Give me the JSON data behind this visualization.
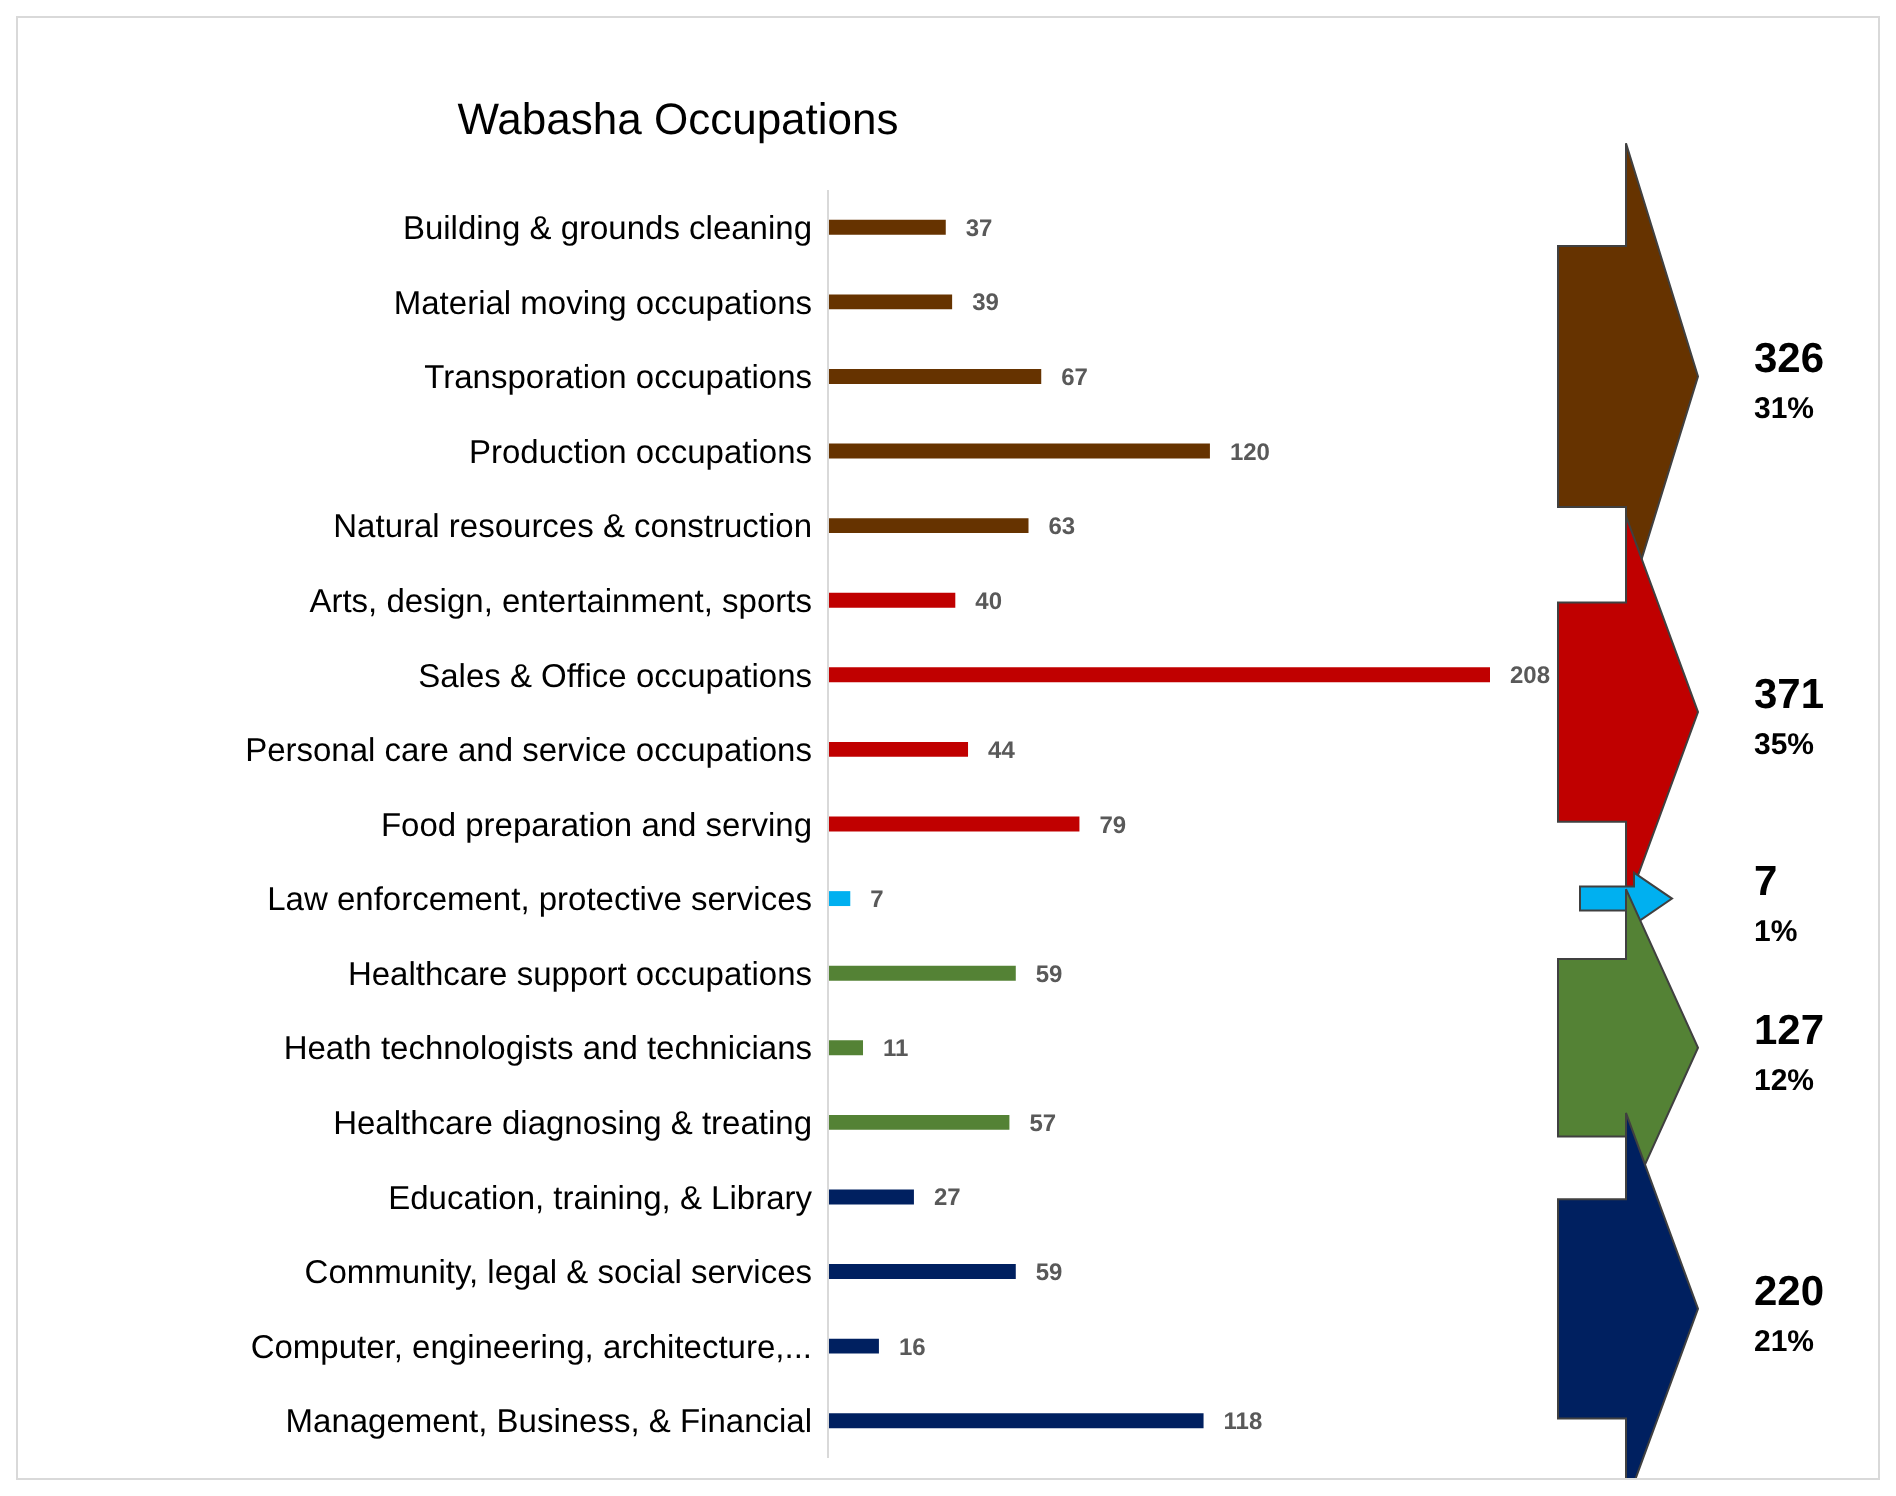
{
  "chart_data": {
    "type": "bar",
    "orientation": "horizontal",
    "title": "Wabasha Occupations",
    "categories": [
      "Building & grounds cleaning",
      "Material moving occupations",
      "Transporation occupations",
      "Production occupations",
      "Natural resources & construction",
      "Arts, design, entertainment, sports",
      "Sales & Office occupations",
      "Personal care and service occupations",
      "Food preparation and serving",
      "Law enforcement, protective services",
      "Healthcare support occupations",
      "Heath technologists and technicians",
      "Healthcare diagnosing & treating",
      "Education, training, & Library",
      "Community, legal & social services",
      "Computer, engineering, architecture,...",
      "Management, Business, & Financial"
    ],
    "values": [
      37,
      39,
      67,
      120,
      63,
      40,
      208,
      44,
      79,
      7,
      59,
      11,
      57,
      27,
      59,
      16,
      118
    ],
    "colors": [
      "#663300",
      "#663300",
      "#663300",
      "#663300",
      "#663300",
      "#c00000",
      "#c00000",
      "#c00000",
      "#c00000",
      "#00b0f0",
      "#548235",
      "#548235",
      "#548235",
      "#002060",
      "#002060",
      "#002060",
      "#002060"
    ],
    "data_labels": true,
    "annotations": [
      "326",
      "31%",
      "371",
      "35%",
      "7",
      "1%",
      "127",
      "12%",
      "220",
      "21%"
    ]
  }
}
